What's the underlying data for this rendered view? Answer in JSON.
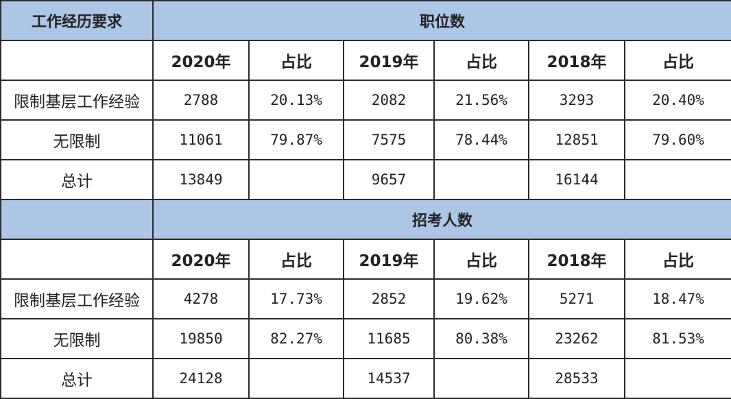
{
  "header": {
    "title": "工作经历要求"
  },
  "sections": [
    {
      "title": "职位数",
      "columns": [
        "2020年",
        "占比",
        "2019年",
        "占比",
        "2018年",
        "占比"
      ],
      "rows": [
        [
          "限制基层工作经验",
          "2788",
          "20.13%",
          "2082",
          "21.56%",
          "3293",
          "20.40%"
        ],
        [
          "无限制",
          "11061",
          "79.87%",
          "7575",
          "78.44%",
          "12851",
          "79.60%"
        ],
        [
          "总计",
          "13849",
          null,
          "9657",
          null,
          "16144",
          null
        ]
      ]
    },
    {
      "title": "招考人数",
      "columns": [
        "2020年",
        "占比",
        "2019年",
        "占比",
        "2018年",
        "占比"
      ],
      "rows": [
        [
          "限制基层工作经验",
          "4278",
          "17.73%",
          "2852",
          "19.62%",
          "5271",
          "18.47%"
        ],
        [
          "无限制",
          "19850",
          "82.27%",
          "11685",
          "80.38%",
          "23262",
          "81.53%"
        ],
        [
          "总计",
          "24128",
          null,
          "14537",
          null,
          "28533",
          null
        ]
      ]
    }
  ]
}
